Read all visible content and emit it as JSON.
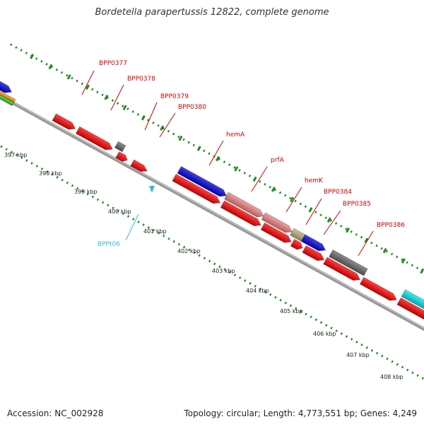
{
  "title": "Bordetella parapertussis 12822, complete genome",
  "footer": {
    "accession": "Accession: NC_002928",
    "topology": "Topology: circular; Length: 4,773,551 bp; Genes: 4,249"
  },
  "colors": {
    "red": "#ff0000",
    "blue": "#0000dd",
    "pink": "#f08080",
    "gray": "#666666",
    "olive": "#b8ae74",
    "cyan": "#00e5f0",
    "orange": "#ff9900",
    "green": "#33cc33",
    "backbone": "#9a9a9a",
    "ticks": "#228b22",
    "label": "#cc0000",
    "trna": "#33bbdd"
  },
  "scale_labels": [
    "397 kbp",
    "398 kbp",
    "399 kbp",
    "400 kbp",
    "401 kbp",
    "402 kbp",
    "403 kbp",
    "404 kbp",
    "405 kbp",
    "406 kbp",
    "407 kbp",
    "408 kbp"
  ],
  "gene_labels": [
    "BPP0377",
    "BPP0378",
    "BPP0379",
    "BPP0380",
    "hemA",
    "prfA",
    "hemK",
    "BPP0384",
    "BPP0385",
    "BPP0386"
  ],
  "trna_label": "BPPt06"
}
